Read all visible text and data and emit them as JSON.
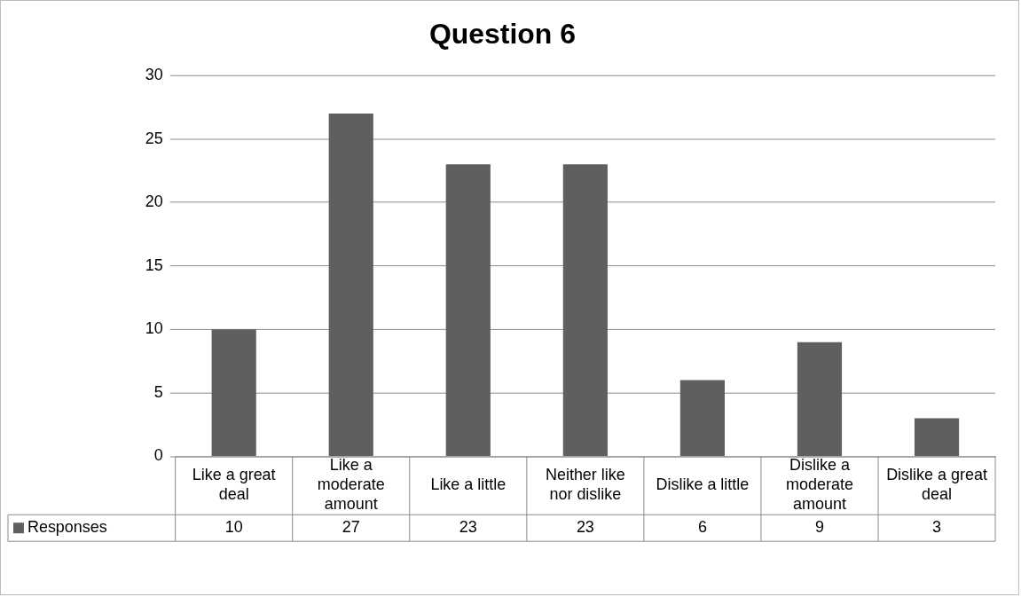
{
  "chart_data": {
    "type": "bar",
    "title": "Question 6",
    "categories": [
      "Like a great deal",
      "Like a moderate amount",
      "Like a little",
      "Neither like nor dislike",
      "Dislike a little",
      "Dislike a moderate amount",
      "Dislike a great deal"
    ],
    "series": [
      {
        "name": "Responses",
        "color": "#5f5f5f",
        "values": [
          10,
          27,
          23,
          23,
          6,
          9,
          3
        ]
      }
    ],
    "ylim": [
      0,
      30
    ],
    "yticks": [
      0,
      5,
      10,
      15,
      20,
      25,
      30
    ],
    "grid": "y",
    "legend": "bottom",
    "data_labels": true
  }
}
